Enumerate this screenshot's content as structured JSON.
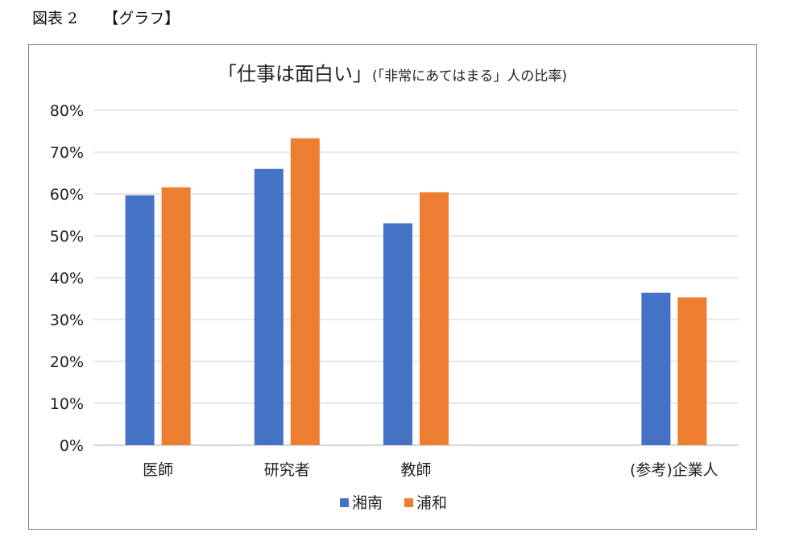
{
  "figure_label": "図表 2",
  "figure_subtitle": "【グラフ】",
  "chart_data": {
    "type": "bar",
    "title_main": "「仕事は面白い」",
    "title_sub": "(「非常にあてはまる」人の比率)",
    "categories": [
      "医師",
      "研究者",
      "教師",
      "",
      "(参考)企業人"
    ],
    "series": [
      {
        "name": "湘南",
        "color": "#4472C4",
        "values": [
          59.7,
          66.0,
          53.0,
          null,
          36.4
        ]
      },
      {
        "name": "浦和",
        "color": "#ED7D31",
        "values": [
          61.6,
          73.3,
          60.4,
          null,
          35.3
        ]
      }
    ],
    "ylim": [
      0,
      80
    ],
    "y_ticks": [
      "0%",
      "10%",
      "20%",
      "30%",
      "40%",
      "50%",
      "60%",
      "70%",
      "80%"
    ],
    "y_tick_values": [
      0,
      10,
      20,
      30,
      40,
      50,
      60,
      70,
      80
    ],
    "grid": true,
    "legend_position": "bottom"
  }
}
